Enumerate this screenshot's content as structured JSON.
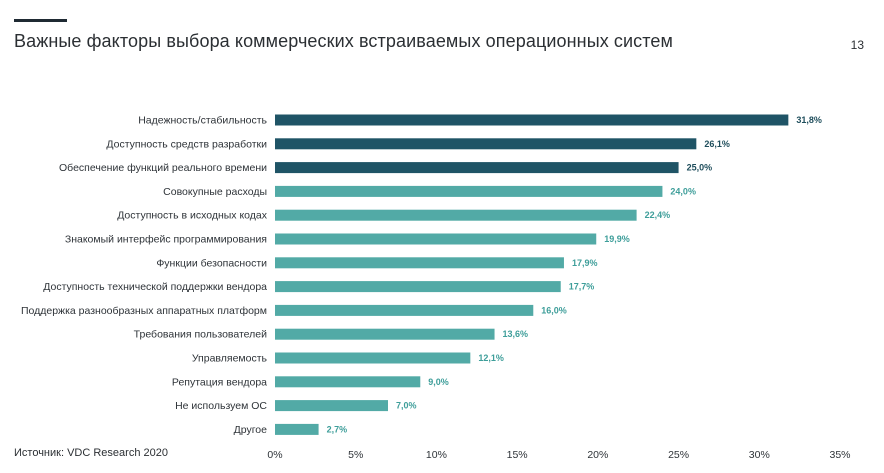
{
  "header": {
    "title": "Важные факторы выбора коммерческих встраиваемых операционных систем",
    "page_number": "13"
  },
  "footer": {
    "source": "Источник: VDC Research 2020"
  },
  "colors": {
    "dark_bar": "#1f5466",
    "light_bar": "#52aaa6",
    "dark_label": "#1f4e5c",
    "light_label": "#3e9e9a"
  },
  "chart_data": {
    "type": "bar",
    "orientation": "horizontal",
    "categories": [
      "Надежность/стабильность",
      "Доступность средств разработки",
      "Обеспечение функций реального времени",
      "Совокупные расходы",
      "Доступность в исходных кодах",
      "Знакомый интерфейс программирования",
      "Функции безопасности",
      "Доступность технической поддержки вендора",
      "Поддержка разнообразных аппаратных платформ",
      "Требования пользователей",
      "Управляемость",
      "Репутация вендора",
      "Не используем ОС",
      "Другое"
    ],
    "values": [
      31.8,
      26.1,
      25.0,
      24.0,
      22.4,
      19.9,
      17.9,
      17.7,
      16.0,
      13.6,
      12.1,
      9.0,
      7.0,
      2.7
    ],
    "value_labels": [
      "31,8%",
      "26,1%",
      "25,0%",
      "24,0%",
      "22,4%",
      "19,9%",
      "17,9%",
      "17,7%",
      "16,0%",
      "13,6%",
      "12,1%",
      "9,0%",
      "7,0%",
      "2,7%"
    ],
    "highlight": [
      true,
      true,
      true,
      false,
      false,
      false,
      false,
      false,
      false,
      false,
      false,
      false,
      false,
      false
    ],
    "xlim": [
      0,
      35
    ],
    "xticks": [
      "0%",
      "5%",
      "10%",
      "15%",
      "20%",
      "25%",
      "30%",
      "35%"
    ],
    "grid": false,
    "legend": "none"
  }
}
